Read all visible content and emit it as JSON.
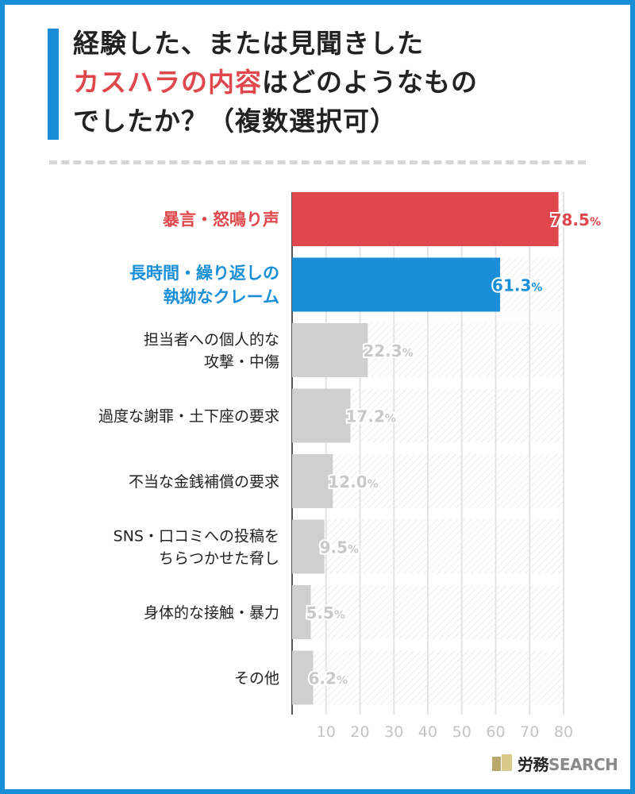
{
  "title": {
    "line1": "経験した、または見聞きした",
    "line2_highlight": "カスハラの内容",
    "line2_rest": "はどのようなもの",
    "line3": "でしたか？（複数選択可）"
  },
  "logo": {
    "jp": "労務",
    "en": "SEARCH"
  },
  "chart_data": {
    "type": "bar",
    "orientation": "horizontal",
    "unit": "%",
    "categories": [
      [
        "暴言・怒鳴り声"
      ],
      [
        "長時間・繰り返しの",
        "執拗なクレーム"
      ],
      [
        "担当者への個人的な",
        "攻撃・中傷"
      ],
      [
        "過度な謝罪・土下座の要求"
      ],
      [
        "不当な金銭補償の要求"
      ],
      [
        "SNS・口コミへの投稿を",
        "ちらつかせた脅し"
      ],
      [
        "身体的な接触・暴力"
      ],
      [
        "その他"
      ]
    ],
    "values": [
      78.5,
      61.3,
      22.3,
      17.2,
      12.0,
      9.5,
      5.5,
      6.2
    ],
    "value_labels": [
      "78.5",
      "61.3",
      "22.3",
      "17.2",
      "12.0",
      "9.5",
      "5.5",
      "6.2"
    ],
    "xlim": [
      0,
      80
    ],
    "xticks": [
      "10",
      "20",
      "30",
      "40",
      "50",
      "60",
      "70",
      "80"
    ],
    "colors": [
      "#e0474c",
      "#1a8fd8",
      "#cfcfcf",
      "#cfcfcf",
      "#cfcfcf",
      "#cfcfcf",
      "#cfcfcf",
      "#cfcfcf"
    ],
    "label_colors": [
      "#e0474c",
      "#1a8fd8",
      "#222222",
      "#222222",
      "#222222",
      "#222222",
      "#222222",
      "#222222"
    ],
    "value_colors": [
      "#e0474c",
      "#1a8fd8",
      "#c8c8c8",
      "#c8c8c8",
      "#c8c8c8",
      "#c8c8c8",
      "#c8c8c8",
      "#c8c8c8"
    ]
  }
}
